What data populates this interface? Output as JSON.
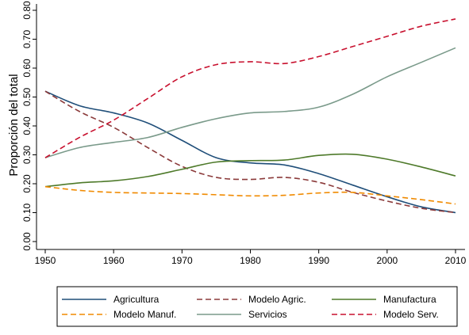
{
  "chart_data": {
    "type": "line",
    "title": "",
    "xlabel": "",
    "ylabel": "Proporción del total",
    "xlim": [
      1950,
      2010
    ],
    "ylim": [
      0,
      0.8
    ],
    "x_ticks": [
      "1950",
      "1960",
      "1970",
      "1980",
      "1990",
      "2000",
      "2010"
    ],
    "y_ticks": [
      "0.00",
      "0.10",
      "0.20",
      "0.30",
      "0.40",
      "0.50",
      "0.60",
      "0.70",
      "0.80"
    ],
    "grid": false,
    "legend_position": "bottom",
    "series": [
      {
        "name": "Agricultura",
        "color": "#1f4e79",
        "dash": "solid",
        "x": [
          1950,
          1955,
          1960,
          1965,
          1970,
          1975,
          1980,
          1985,
          1990,
          1995,
          2000,
          2005,
          2010
        ],
        "values": [
          0.52,
          0.47,
          0.445,
          0.41,
          0.35,
          0.29,
          0.272,
          0.265,
          0.235,
          0.195,
          0.155,
          0.12,
          0.1
        ]
      },
      {
        "name": "Modelo Agric.",
        "color": "#8b3a3a",
        "dash": "dashed",
        "x": [
          1950,
          1955,
          1960,
          1965,
          1970,
          1975,
          1980,
          1985,
          1990,
          1995,
          2000,
          2005,
          2010
        ],
        "values": [
          0.52,
          0.45,
          0.395,
          0.325,
          0.26,
          0.222,
          0.215,
          0.222,
          0.205,
          0.17,
          0.14,
          0.115,
          0.1
        ]
      },
      {
        "name": "Manufactura",
        "color": "#4e7a2a",
        "dash": "solid",
        "x": [
          1950,
          1955,
          1960,
          1965,
          1970,
          1975,
          1980,
          1985,
          1990,
          1995,
          2000,
          2005,
          2010
        ],
        "values": [
          0.19,
          0.203,
          0.21,
          0.225,
          0.25,
          0.275,
          0.28,
          0.282,
          0.298,
          0.302,
          0.285,
          0.258,
          0.227
        ]
      },
      {
        "name": "Modelo Manuf.",
        "color": "#f08a00",
        "dash": "dashed",
        "x": [
          1950,
          1955,
          1960,
          1965,
          1970,
          1975,
          1980,
          1985,
          1990,
          1995,
          2000,
          2005,
          2010
        ],
        "values": [
          0.19,
          0.177,
          0.17,
          0.168,
          0.166,
          0.162,
          0.158,
          0.16,
          0.168,
          0.17,
          0.158,
          0.145,
          0.13
        ]
      },
      {
        "name": "Servicios",
        "color": "#7a9a8a",
        "dash": "solid",
        "x": [
          1950,
          1955,
          1960,
          1965,
          1970,
          1975,
          1980,
          1985,
          1990,
          1995,
          2000,
          2005,
          2010
        ],
        "values": [
          0.29,
          0.325,
          0.343,
          0.36,
          0.395,
          0.425,
          0.445,
          0.45,
          0.465,
          0.51,
          0.57,
          0.62,
          0.67
        ]
      },
      {
        "name": "Modelo Serv.",
        "color": "#c8102e",
        "dash": "dashed",
        "x": [
          1950,
          1955,
          1960,
          1965,
          1970,
          1975,
          1980,
          1985,
          1990,
          1995,
          2000,
          2005,
          2010
        ],
        "values": [
          0.29,
          0.36,
          0.42,
          0.495,
          0.57,
          0.612,
          0.622,
          0.616,
          0.64,
          0.675,
          0.71,
          0.745,
          0.77
        ]
      }
    ]
  }
}
